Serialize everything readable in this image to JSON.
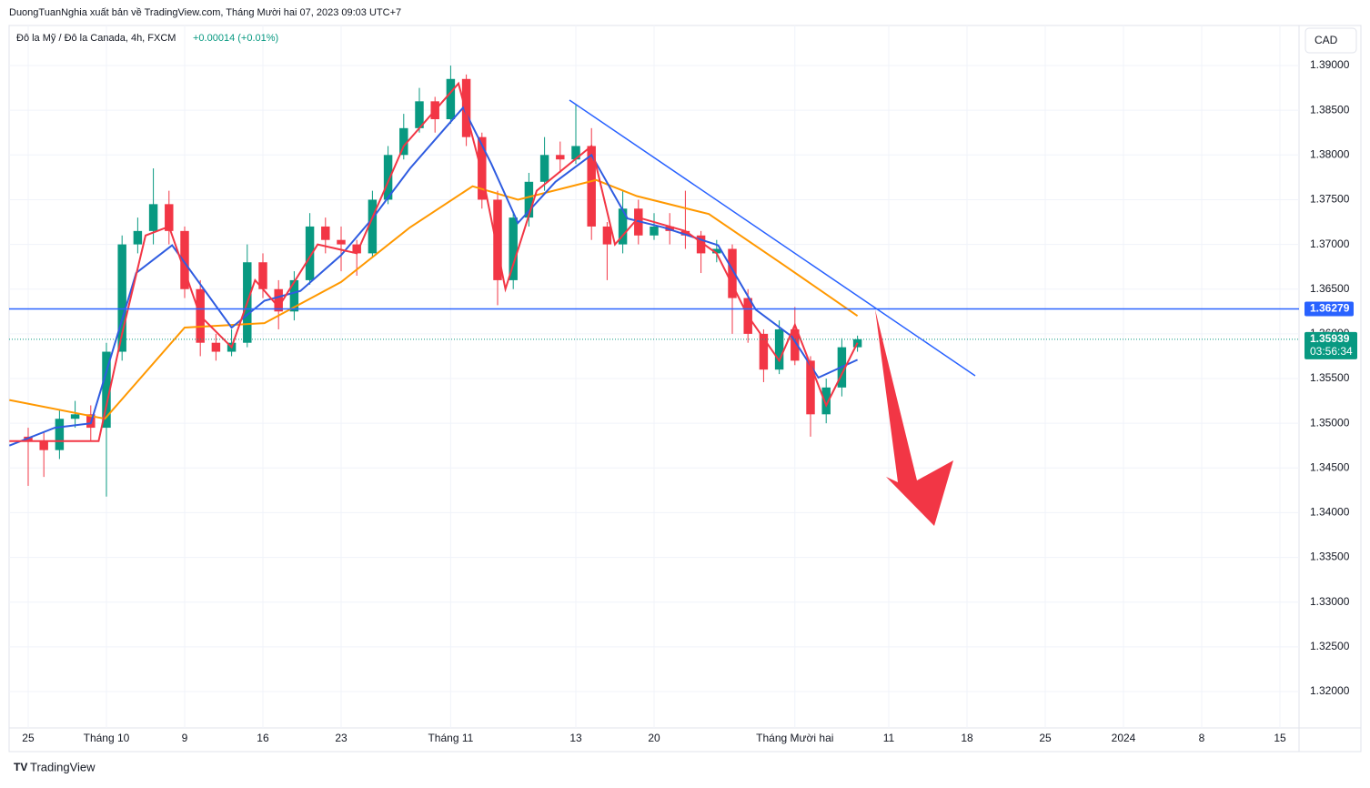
{
  "chart_data": {
    "type": "candlestick",
    "publisher": "DuongTuanNghia xuất bản về TradingView.com, Tháng Mười hai 07, 2023 09:03 UTC+7",
    "title": "Đô la Mỹ / Đô la Canada, 4h, FXCM",
    "change": "+0.00014 (+0.01%)",
    "currency": "CAD",
    "brand": "TradingView",
    "up_color": "#089981",
    "down_color": "#f23645",
    "x": [
      0,
      1,
      2,
      3,
      4,
      5,
      6,
      7,
      8,
      9,
      10,
      11,
      12,
      13,
      14,
      15,
      16,
      17,
      18,
      19,
      20,
      21,
      22,
      23,
      24,
      25,
      26,
      27,
      28,
      29,
      30,
      31,
      32,
      33,
      34,
      35,
      36,
      37,
      38,
      39,
      40,
      41,
      42,
      43,
      44,
      45,
      46,
      47,
      48,
      49,
      50,
      51,
      52,
      53
    ],
    "open": [
      1.3485,
      1.348,
      1.347,
      1.3505,
      1.351,
      1.3495,
      1.358,
      1.37,
      1.3715,
      1.3745,
      1.3715,
      1.365,
      1.359,
      1.358,
      1.359,
      1.368,
      1.365,
      1.3625,
      1.366,
      1.372,
      1.3705,
      1.37,
      1.369,
      1.375,
      1.38,
      1.383,
      1.386,
      1.384,
      1.3885,
      1.382,
      1.375,
      1.366,
      1.373,
      1.377,
      1.38,
      1.3795,
      1.381,
      1.372,
      1.37,
      1.374,
      1.371,
      1.372,
      1.3715,
      1.371,
      1.369,
      1.3695,
      1.364,
      1.36,
      1.356,
      1.3605,
      1.357,
      1.351,
      1.354,
      1.3585
    ],
    "high": [
      1.3495,
      1.349,
      1.3515,
      1.3525,
      1.352,
      1.359,
      1.371,
      1.373,
      1.3785,
      1.376,
      1.372,
      1.366,
      1.36,
      1.3605,
      1.37,
      1.369,
      1.366,
      1.367,
      1.3735,
      1.373,
      1.372,
      1.3705,
      1.376,
      1.381,
      1.3846,
      1.3875,
      1.3865,
      1.39,
      1.389,
      1.3825,
      1.376,
      1.3735,
      1.378,
      1.382,
      1.3815,
      1.3856,
      1.383,
      1.3725,
      1.376,
      1.375,
      1.3735,
      1.3735,
      1.376,
      1.3715,
      1.3705,
      1.37,
      1.365,
      1.3605,
      1.3615,
      1.363,
      1.3575,
      1.355,
      1.3595,
      1.3598
    ],
    "low": [
      1.343,
      1.344,
      1.346,
      1.3495,
      1.348,
      1.3418,
      1.357,
      1.369,
      1.37,
      1.37,
      1.364,
      1.3575,
      1.357,
      1.3575,
      1.3585,
      1.364,
      1.3605,
      1.3615,
      1.3655,
      1.369,
      1.367,
      1.3665,
      1.3685,
      1.3745,
      1.3795,
      1.3825,
      1.3825,
      1.3835,
      1.381,
      1.374,
      1.3632,
      1.365,
      1.372,
      1.376,
      1.378,
      1.379,
      1.3705,
      1.366,
      1.369,
      1.37,
      1.3705,
      1.37,
      1.3695,
      1.3668,
      1.368,
      1.36,
      1.359,
      1.3546,
      1.3555,
      1.3565,
      1.3485,
      1.35,
      1.353,
      1.358
    ],
    "close": [
      1.348,
      1.347,
      1.3505,
      1.351,
      1.3495,
      1.358,
      1.37,
      1.3715,
      1.3745,
      1.3715,
      1.365,
      1.359,
      1.358,
      1.359,
      1.368,
      1.365,
      1.3625,
      1.366,
      1.372,
      1.3705,
      1.37,
      1.369,
      1.375,
      1.38,
      1.383,
      1.386,
      1.384,
      1.3885,
      1.382,
      1.375,
      1.366,
      1.373,
      1.377,
      1.38,
      1.3795,
      1.381,
      1.372,
      1.37,
      1.374,
      1.371,
      1.372,
      1.3715,
      1.371,
      1.369,
      1.3695,
      1.364,
      1.36,
      1.356,
      1.3605,
      1.357,
      1.351,
      1.354,
      1.3585,
      1.3594
    ],
    "lines": [
      {
        "color": "#ff9800",
        "x": [
          -1.2,
          4.9,
          10.0,
          15.1,
          20.0,
          24.4,
          28.4,
          31.3,
          36.3,
          38.9,
          43.5,
          48.2,
          53.0
        ],
        "values": [
          1.3526,
          1.3505,
          1.3607,
          1.3612,
          1.3658,
          1.3719,
          1.3765,
          1.375,
          1.3772,
          1.3754,
          1.3734,
          1.3678,
          1.362
        ]
      },
      {
        "color": "#2f5ce0",
        "x": [
          -1.2,
          1.7,
          4.0,
          6.9,
          9.2,
          13.0,
          15.1,
          17.4,
          20.0,
          22.0,
          24.4,
          26.7,
          27.8,
          29.6,
          31.3,
          33.7,
          36.0,
          38.3,
          40.6,
          44.1,
          46.5,
          48.8,
          50.5,
          53.0
        ],
        "values": [
          1.3475,
          1.3495,
          1.35,
          1.3668,
          1.3699,
          1.3607,
          1.3637,
          1.3648,
          1.3688,
          1.3729,
          1.3785,
          1.3831,
          1.3853,
          1.379,
          1.3724,
          1.377,
          1.38,
          1.3729,
          1.3719,
          1.3699,
          1.3627,
          1.3597,
          1.3551,
          1.3571
        ]
      },
      {
        "color": "#f23645",
        "x": [
          -1.2,
          4.5,
          6,
          7.5,
          9,
          11,
          13,
          14.5,
          16,
          18.5,
          21,
          24,
          26,
          27.5,
          29,
          30.5,
          32.5,
          36,
          37.5,
          39,
          42,
          44,
          46,
          48,
          49,
          51,
          53
        ],
        "values": [
          1.348,
          1.348,
          1.36,
          1.371,
          1.372,
          1.362,
          1.3585,
          1.366,
          1.363,
          1.37,
          1.369,
          1.381,
          1.385,
          1.388,
          1.378,
          1.365,
          1.376,
          1.381,
          1.37,
          1.373,
          1.3715,
          1.369,
          1.362,
          1.357,
          1.361,
          1.352,
          1.359
        ]
      }
    ],
    "price_line": {
      "value": 1.36279,
      "color": "#2962ff"
    },
    "last_price": {
      "value": 1.35939,
      "countdown": "03:56:34",
      "color": "#089981"
    },
    "xlim": [
      -1.22,
      81.22
    ],
    "ylim": [
      1.31593,
      1.39448
    ],
    "xticks": [
      {
        "value": 0,
        "label": "25"
      },
      {
        "value": 5,
        "label": "Tháng 10"
      },
      {
        "value": 10,
        "label": "9"
      },
      {
        "value": 15,
        "label": "16"
      },
      {
        "value": 20,
        "label": "23"
      },
      {
        "value": 27,
        "label": "Tháng 11"
      },
      {
        "value": 35,
        "label": "13"
      },
      {
        "value": 40,
        "label": "20"
      },
      {
        "value": 49,
        "label": "Tháng Mười hai"
      },
      {
        "value": 55,
        "label": "11"
      },
      {
        "value": 60,
        "label": "18"
      },
      {
        "value": 65,
        "label": "25"
      },
      {
        "value": 70,
        "label": "2024"
      },
      {
        "value": 75,
        "label": "8"
      },
      {
        "value": 80,
        "label": "15"
      }
    ],
    "yticks": [
      {
        "value": 1.32,
        "label": "1.32000"
      },
      {
        "value": 1.325,
        "label": "1.32500"
      },
      {
        "value": 1.33,
        "label": "1.33000"
      },
      {
        "value": 1.335,
        "label": "1.33500"
      },
      {
        "value": 1.34,
        "label": "1.34000"
      },
      {
        "value": 1.345,
        "label": "1.34500"
      },
      {
        "value": 1.35,
        "label": "1.35000"
      },
      {
        "value": 1.355,
        "label": "1.35500"
      },
      {
        "value": 1.36,
        "label": "1.36000"
      },
      {
        "value": 1.365,
        "label": "1.36500"
      },
      {
        "value": 1.37,
        "label": "1.37000"
      },
      {
        "value": 1.375,
        "label": "1.37500"
      },
      {
        "value": 1.38,
        "label": "1.38000"
      },
      {
        "value": 1.385,
        "label": "1.38500"
      },
      {
        "value": 1.39,
        "label": "1.39000"
      }
    ],
    "grid": true
  }
}
